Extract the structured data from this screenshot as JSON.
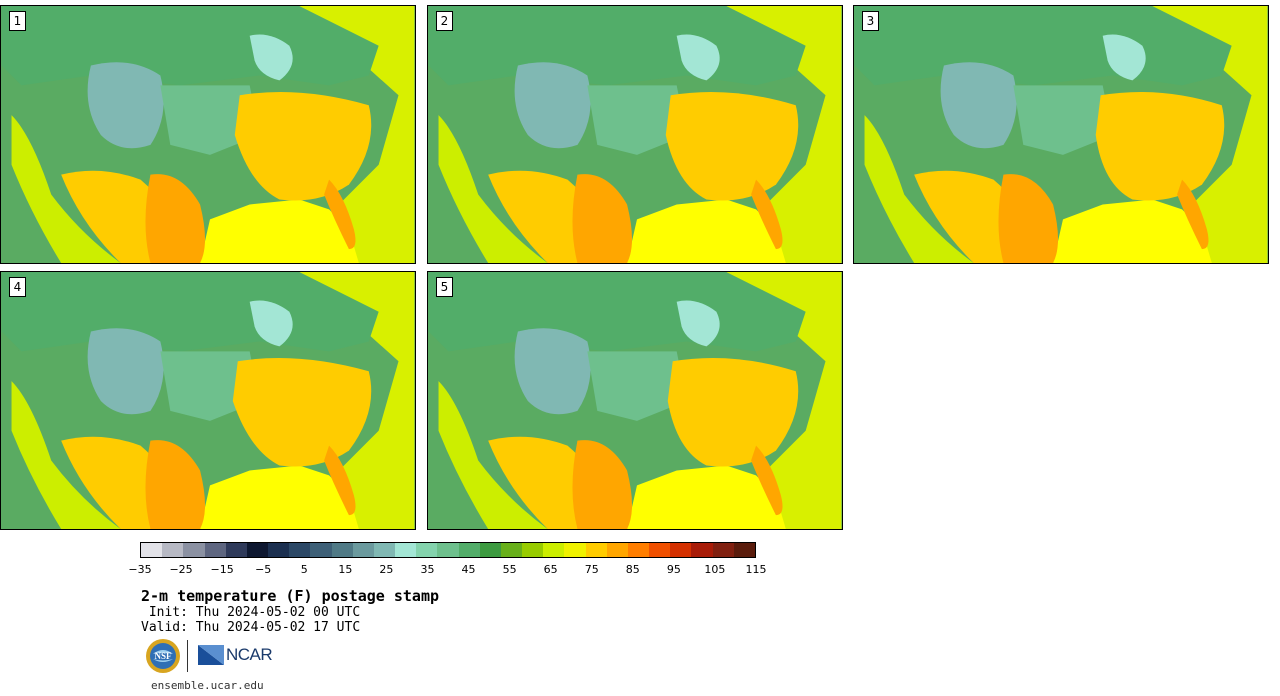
{
  "panels": [
    {
      "label": "1"
    },
    {
      "label": "2"
    },
    {
      "label": "3"
    },
    {
      "label": "4"
    },
    {
      "label": "5"
    }
  ],
  "colorbar": {
    "colors": [
      "#e2e2e8",
      "#b7b9c4",
      "#8b91a2",
      "#5e6680",
      "#2f3a5a",
      "#0e1830",
      "#1c3050",
      "#2c4866",
      "#3e6077",
      "#507a86",
      "#6b9a9e",
      "#80b8b3",
      "#a3e6d5",
      "#84d3ad",
      "#6ec08d",
      "#52ad69",
      "#3c9a40",
      "#68b01a",
      "#98cc00",
      "#ccee00",
      "#f0f200",
      "#ffcc00",
      "#ffa600",
      "#ff7e00",
      "#f05000",
      "#d43000",
      "#a81c08",
      "#802010",
      "#5a1c0c"
    ],
    "tick_labels": [
      "−35",
      "−25",
      "−15",
      "−5",
      "5",
      "15",
      "25",
      "35",
      "45",
      "55",
      "65",
      "75",
      "85",
      "95",
      "105",
      "115"
    ]
  },
  "title": "2-m temperature (F) postage stamp",
  "init_text": " Init: Thu 2024-05-02 00 UTC",
  "valid_text": "Valid: Thu 2024-05-02 17 UTC",
  "logos": {
    "nsf_icon": "nsf-globe-icon",
    "ncar_icon": "ncar-icon",
    "ncar_text": "NCAR",
    "nsf_text": "NSF"
  },
  "site": "ensemble.ucar.edu",
  "map_colors": {
    "ocean_west": "#5aab62",
    "atlantic": "#d8f000",
    "gulf": "#ffff00",
    "canada": "#52ad69",
    "rockies": "#80b8b3",
    "plains": "#6ec08d",
    "warm_zone": "#ffcc00",
    "hot_zone": "#ffa600",
    "mid_zone": "#ccee00",
    "lakes": "#a3e6d5"
  }
}
